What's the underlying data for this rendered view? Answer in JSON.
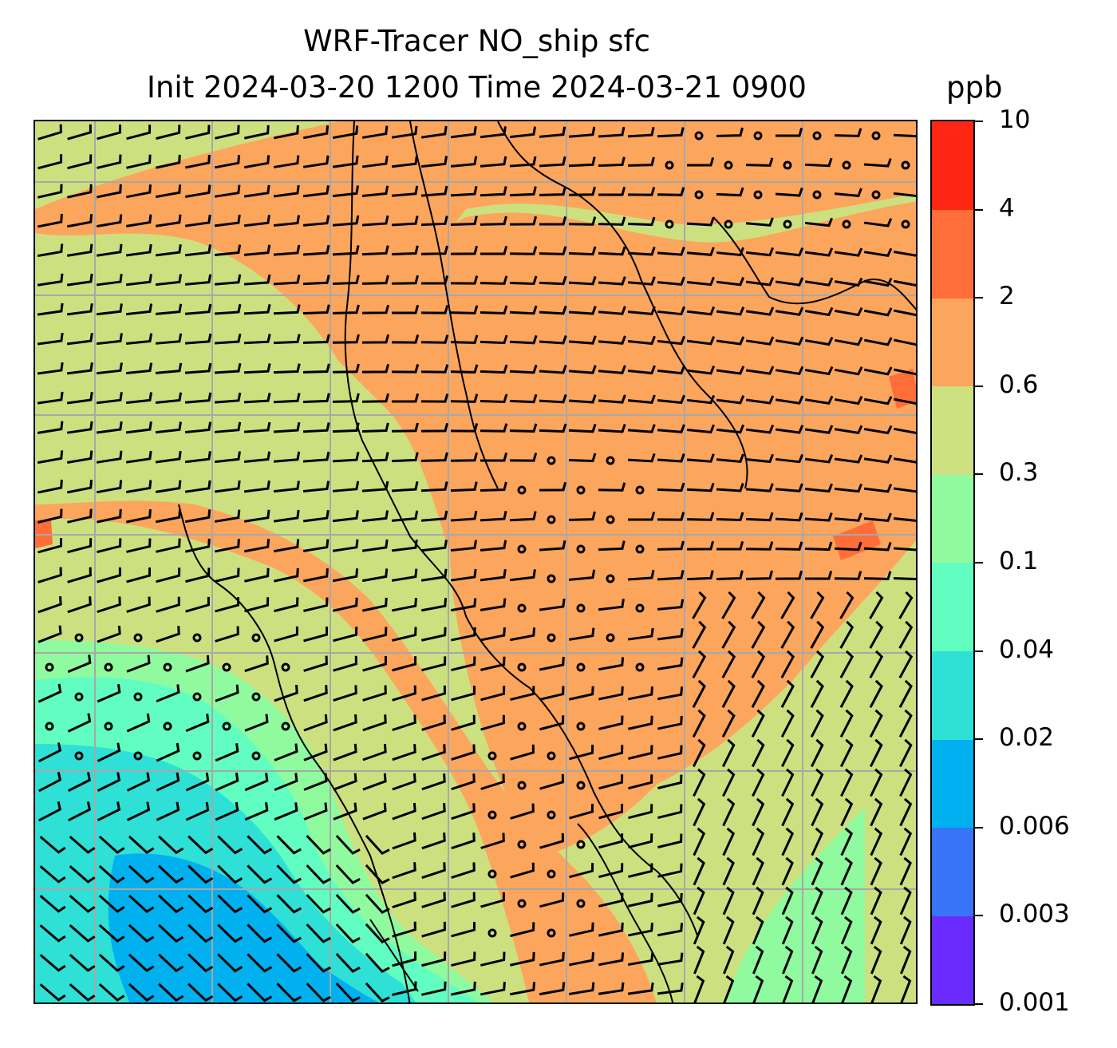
{
  "title": {
    "line1": "WRF-Tracer NO_ship sfc",
    "line2": "Init 2024-03-20 1200 Time 2024-03-21 0900",
    "unit": "ppb"
  },
  "colorbar": {
    "levels": [
      "0.001",
      "0.003",
      "0.006",
      "0.02",
      "0.04",
      "0.1",
      "0.3",
      "0.6",
      "2",
      "4",
      "10"
    ],
    "colors": [
      "#6a2cfe",
      "#3873f8",
      "#00b0ef",
      "#2ee0d6",
      "#62fdc1",
      "#90fa9f",
      "#cde080",
      "#fca55d",
      "#ff6d39",
      "#ff2713"
    ]
  },
  "map": {
    "fill_colors": {
      "low_blue": "#00b0ef",
      "cyan": "#2ee0d6",
      "aqua": "#62fdc1",
      "light_green": "#90fa9f",
      "yellow_green": "#cde080",
      "orange": "#fca55d",
      "red_orange": "#ff6d39"
    },
    "gridlines": true,
    "wind_barbs": true,
    "coastlines": true
  }
}
